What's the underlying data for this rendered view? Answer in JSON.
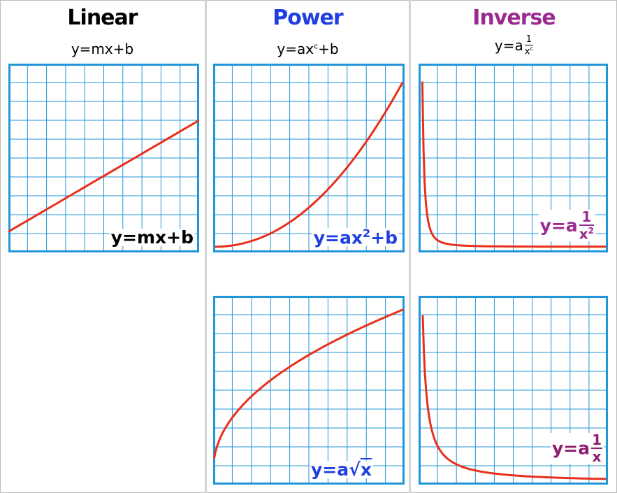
{
  "colors": {
    "grid": "#2196d9",
    "curve": "#e8301c",
    "linear": "#000000",
    "power": "#1f3fe0",
    "inverse": "#9a2a8f"
  },
  "columns": [
    {
      "title": "Linear",
      "formula": "y=mx+b"
    },
    {
      "title": "Power",
      "formula_base": "y=ax",
      "formula_exp": "c",
      "formula_tail": "+b"
    },
    {
      "title": "Inverse",
      "formula_base": "y=a",
      "formula_num": "1",
      "formula_den": "x",
      "formula_den_exp": "c"
    }
  ],
  "panels": {
    "linear": {
      "equation": "y=mx+b"
    },
    "power_square": {
      "equation_base": "y=ax",
      "equation_exp": "2",
      "equation_tail": "+b"
    },
    "power_sqrt": {
      "equation_base": "y=a",
      "equation_root_sign": "√",
      "equation_radicand": "x"
    },
    "inverse_square": {
      "equation_base": "y=a",
      "equation_num": "1",
      "equation_den": "x",
      "equation_den_exp": "2"
    },
    "inverse_x": {
      "equation_base": "y=a",
      "equation_num": "1",
      "equation_den": "x"
    }
  }
}
